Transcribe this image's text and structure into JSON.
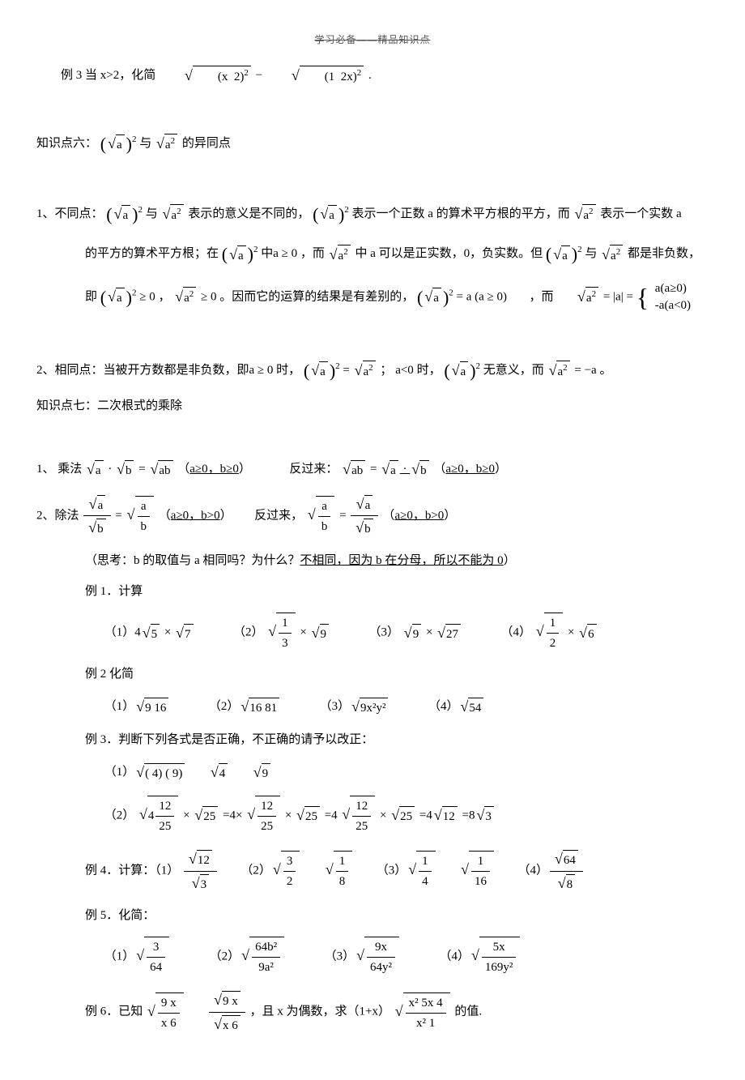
{
  "header": "学习必备——精品知识点",
  "ex3": "例 3 当 x>2，化简",
  "ex3_a": "(x  2)",
  "ex3_b": "(1  2x)",
  "dot": ".",
  "k6_title": "知识点六：",
  "k6_with": "与",
  "k6_tail": " 的异同点",
  "k6_1_head": "1、不同点：",
  "k6_1_a": "表示的意义是不同的，",
  "k6_1_b": "表示一个正数 a 的算术平方根的平方，而",
  "k6_1_c": "表示一个实数 a",
  "k6_1_d": "的平方的算术平方根；在",
  "k6_1_e": "中",
  "k6_1_f": "，而",
  "k6_1_g": " 中 a 可以是正实数，0，负实数。但",
  "k6_1_h": "都是非负数，",
  "k6_1_i": "即",
  "k6_1_j": "，",
  "k6_1_k": "。因而它的运算的结果是有差别的，",
  "k6_1_l": "，而",
  "a_ge_0": "a ≥ 0",
  "p1": "a(a≥0)",
  "p2": "-a(a<0)",
  "eq_abs": " = |a| = ",
  "k6_2_head": "2、相同点：当被开方数都是非负数，即",
  "k6_2_a": "时，",
  "k6_2_b": "=",
  "k6_2_c": "；",
  "alt0": "a<0",
  "k6_2_d": "时，",
  "k6_2_e": "无意义，而",
  "eq_neg_a": " = −a",
  "k6_2_f": "。",
  "k7_title": "知识点七：二次根式的乘除",
  "mul_head": "1、 乘法",
  "mul_eq": " = ",
  "cond_ab": "a≥0，b≥0",
  "reverse": "反过来：",
  "div_head": "2、除法 ",
  "cond_ab2": "a≥0，b>0",
  "reverse2": "反过来，",
  "think": "（思考：b 的取值与 a 相同吗？为什么？",
  "think_ul": "不相同，因为 b 在分母，所以不能为 0",
  "think_end": "）",
  "ex1": "例 1．计算",
  "e1_1": "（1）4",
  "e1_2": "（2）",
  "e1_3": "（3）",
  "e1_4": "（4）",
  "times": "×",
  "n5": "5",
  "n7": "7",
  "n9": "9",
  "n27": "27",
  "n6": "6",
  "f13n": "1",
  "f13d": "3",
  "f12n": "1",
  "f12d": "2",
  "ex2": "例 2   化简",
  "e2_1": "9  16",
  "e2_2": "16  81",
  "e2_3": "9x²y²",
  "e2_4": "54",
  "ex3h": "例 3．判断下列各式是否正确，不正确的请予以改正：",
  "e3_1a": "( 4)  ( 9)",
  "e3_1b": " 4",
  "e3_1c": " 9",
  "e3_2_lead": "（2）",
  "n412": "4",
  "n12": "12",
  "n25": "25",
  "eq4x": "=4×",
  "eq4": "=4",
  "eq4r12": "=4",
  "sqrt12": "12",
  "eq8r3": "=8",
  "sqrt3": "3",
  "ex4": "例 4．计算：（1）",
  "e4_1n": "12",
  "e4_1d": "3",
  "e4_2n": "3",
  "e4_2d": "2",
  "e4_2bn": "1",
  "e4_2bd": "8",
  "e4_3an": "1",
  "e4_3ad": "4",
  "e4_3bn": "1",
  "e4_3bd": "16",
  "e4_4n": "64",
  "e4_4d": "8",
  "ex5": "例 5．化简：",
  "e5_1n": "3",
  "e5_1d": "64",
  "e5_2n": "64b²",
  "e5_2d": "9a²",
  "e5_3n": "9x",
  "e5_3d": "64y²",
  "e5_4n": "5x",
  "e5_4d": "169y²",
  "ex6a": "例 6．已知",
  "e6_1n": "9  x",
  "e6_1d": "x  6",
  "e6_2n": "9  x",
  "e6_2d": "x  6",
  "ex6b": "，且 x 为偶数，求（1+x）",
  "e6_3n": "x²  5x  4",
  "e6_3d": "x²  1",
  "ex6c": "的值."
}
